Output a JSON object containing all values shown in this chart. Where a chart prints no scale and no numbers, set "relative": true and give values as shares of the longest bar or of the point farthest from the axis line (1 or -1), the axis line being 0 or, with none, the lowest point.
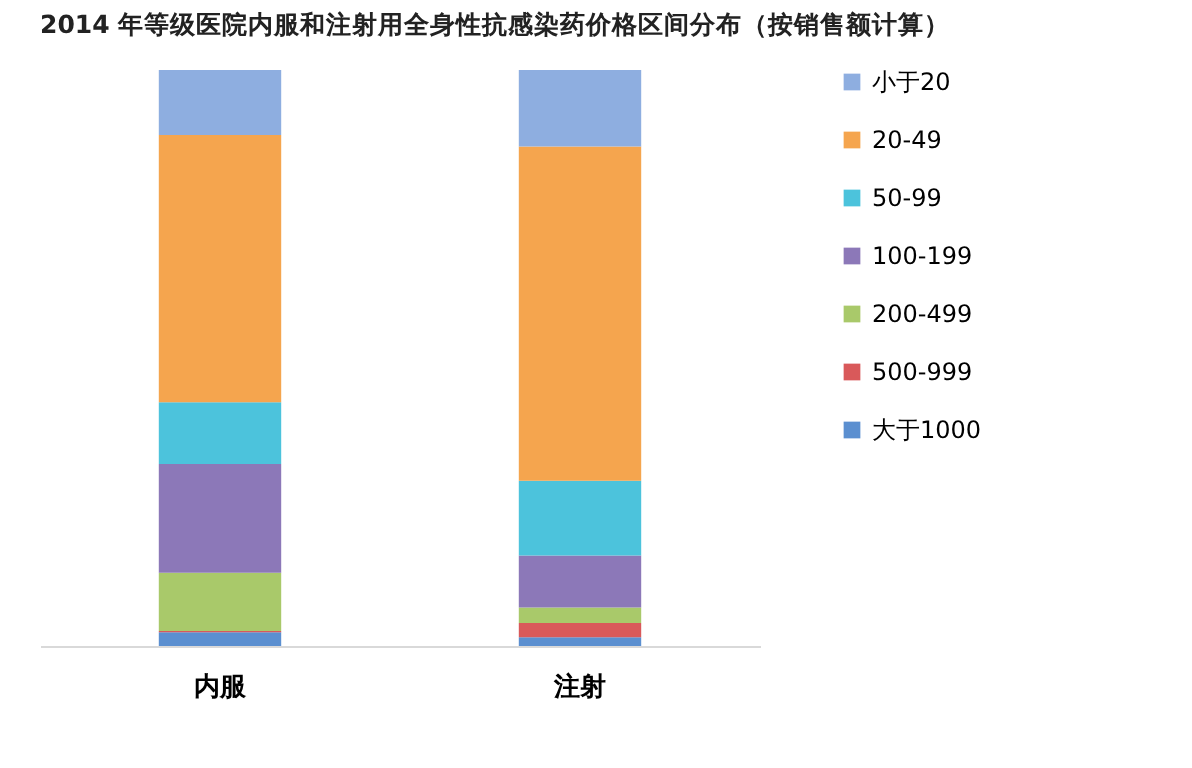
{
  "chart_data": {
    "type": "bar",
    "title": "2014 年等级医院内服和注射用全身性抗感染药价格区间分布（按销售额计算）",
    "categories": [
      "内服",
      "注射"
    ],
    "stacked": true,
    "relative": true,
    "legend": "right",
    "series": [
      {
        "name": "大于1000",
        "color": "#5b8fd0",
        "values": [
          0.024,
          0.015
        ]
      },
      {
        "name": "500-999",
        "color": "#d9595a",
        "values": [
          0.002,
          0.025
        ]
      },
      {
        "name": "200-499",
        "color": "#a9c96a",
        "values": [
          0.101,
          0.027
        ]
      },
      {
        "name": "100-199",
        "color": "#8c78b8",
        "values": [
          0.189,
          0.09
        ]
      },
      {
        "name": "50-99",
        "color": "#4cc3dc",
        "values": [
          0.107,
          0.13
        ]
      },
      {
        "name": "20-49",
        "color": "#f5a54e",
        "values": [
          0.464,
          0.58
        ]
      },
      {
        "name": "小于20",
        "color": "#8eaee0",
        "values": [
          0.113,
          0.133
        ]
      }
    ]
  }
}
